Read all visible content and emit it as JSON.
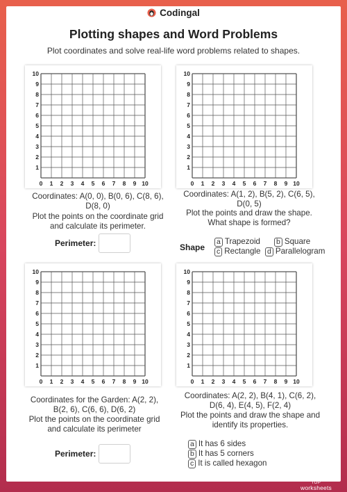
{
  "header": {
    "logo_text": "Codingal",
    "title": "Plotting shapes and Word Problems",
    "subtitle": "Plot coordinates and solve real-life word problems related to shapes."
  },
  "grid_ticks": [
    "0",
    "1",
    "2",
    "3",
    "4",
    "5",
    "6",
    "7",
    "8",
    "9",
    "10"
  ],
  "problems": [
    {
      "coords": "Coordinates: A(0, 0), B(0, 6), C(8, 6), D(8, 0)",
      "instruction": "Plot the points on the coordinate grid  and calculate its perimeter.",
      "perimeter_label": "Perimeter:"
    },
    {
      "coords": "Coordinates: A(1, 2), B(5, 2), C(6, 5), D(0, 5)",
      "instruction": "Plot the points and draw the shape. What shape is formed?",
      "shape_label": "Shape",
      "options": [
        {
          "letter": "a",
          "text": "Trapezoid"
        },
        {
          "letter": "b",
          "text": "Square"
        },
        {
          "letter": "c",
          "text": "Rectangle"
        },
        {
          "letter": "d",
          "text": "Parallelogram"
        }
      ]
    },
    {
      "coords": "Coordinates for the Garden: A(2, 2), B(2, 6), C(6, 6), D(6, 2)",
      "instruction": "Plot the points on the coordinate grid and calculate its perimeter",
      "perimeter_label": "Perimeter:"
    },
    {
      "coords": "Coordinates: A(2, 2), B(4, 1), C(6, 2), D(6, 4), E(4, 5), F(2, 4)",
      "instruction": "Plot the points and draw the shape and identify its properties.",
      "options": [
        {
          "letter": "a",
          "text": "It has 6 sides"
        },
        {
          "letter": "b",
          "text": "It has 5 corners"
        },
        {
          "letter": "c",
          "text": "It is called hexagon"
        }
      ]
    }
  ],
  "footer": {
    "top": "TOP",
    "brand": "worksheets"
  },
  "colors": {
    "background": "#d8465e",
    "grid_lines": "#555555"
  }
}
